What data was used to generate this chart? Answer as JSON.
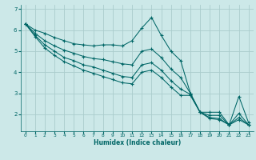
{
  "xlabel": "Humidex (Indice chaleur)",
  "bg_color": "#cce8e8",
  "grid_color": "#aacccc",
  "line_color": "#006666",
  "xlim": [
    -0.5,
    23.5
  ],
  "ylim": [
    1.2,
    7.2
  ],
  "yticks": [
    2,
    3,
    4,
    5,
    6,
    7
  ],
  "xticks": [
    0,
    1,
    2,
    3,
    4,
    5,
    6,
    7,
    8,
    9,
    10,
    11,
    12,
    13,
    14,
    15,
    16,
    17,
    18,
    19,
    20,
    21,
    22,
    23
  ],
  "series": [
    [
      6.3,
      6.0,
      5.85,
      5.65,
      5.5,
      5.35,
      5.3,
      5.25,
      5.3,
      5.3,
      5.25,
      5.5,
      6.1,
      6.6,
      5.75,
      5.0,
      4.55,
      3.0,
      2.1,
      2.1,
      2.1,
      1.5,
      2.85,
      1.6
    ],
    [
      6.3,
      5.85,
      5.5,
      5.25,
      5.05,
      4.9,
      4.75,
      4.65,
      4.6,
      4.5,
      4.4,
      4.35,
      5.0,
      5.1,
      4.7,
      4.15,
      3.75,
      3.0,
      2.1,
      1.95,
      1.95,
      1.5,
      2.05,
      1.5
    ],
    [
      6.3,
      5.75,
      5.3,
      5.0,
      4.7,
      4.55,
      4.35,
      4.25,
      4.1,
      3.95,
      3.8,
      3.75,
      4.35,
      4.45,
      4.1,
      3.6,
      3.2,
      2.95,
      2.1,
      1.85,
      1.8,
      1.5,
      1.85,
      1.5
    ],
    [
      6.3,
      5.7,
      5.15,
      4.8,
      4.5,
      4.3,
      4.1,
      3.95,
      3.8,
      3.65,
      3.5,
      3.45,
      4.0,
      4.1,
      3.75,
      3.3,
      2.9,
      2.9,
      2.1,
      1.8,
      1.75,
      1.5,
      1.75,
      1.5
    ]
  ]
}
